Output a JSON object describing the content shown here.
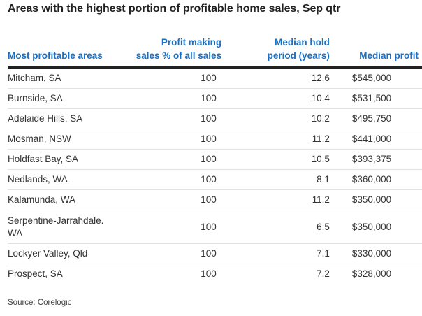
{
  "title": "Areas with the highest portion of profitable home sales, Sep qtr",
  "table": {
    "headers": {
      "area": "Most profitable areas",
      "pct_line1": "Profit making",
      "pct_line2": "sales % of all sales",
      "hold_line1": "Median hold",
      "hold_line2": "period (years)",
      "profit": "Median profit"
    },
    "rows": [
      {
        "area": "Mitcham, SA",
        "pct": "100",
        "hold": "12.6",
        "profit": "$545,000"
      },
      {
        "area": "Burnside, SA",
        "pct": "100",
        "hold": "10.4",
        "profit": "$531,500"
      },
      {
        "area": "Adelaide Hills, SA",
        "pct": "100",
        "hold": "10.2",
        "profit": "$495,750"
      },
      {
        "area": "Mosman, NSW",
        "pct": "100",
        "hold": "11.2",
        "profit": "$441,000"
      },
      {
        "area": "Holdfast Bay, SA",
        "pct": "100",
        "hold": "10.5",
        "profit": "$393,375"
      },
      {
        "area": "Nedlands, WA",
        "pct": "100",
        "hold": "8.1",
        "profit": "$360,000"
      },
      {
        "area": "Kalamunda, WA",
        "pct": "100",
        "hold": "11.2",
        "profit": "$350,000"
      },
      {
        "area_line1": "Serpentine-Jarrahdale.",
        "area_line2": "WA",
        "pct": "100",
        "hold": "6.5",
        "profit": "$350,000"
      },
      {
        "area": "Lockyer Valley, Qld",
        "pct": "100",
        "hold": "7.1",
        "profit": "$330,000"
      },
      {
        "area": "Prospect, SA",
        "pct": "100",
        "hold": "7.2",
        "profit": "$328,000"
      }
    ]
  },
  "source": "Source: Corelogic",
  "colors": {
    "header_text": "#1a6fc2",
    "rule": "#222222",
    "row_divider": "#e2e2e2"
  }
}
